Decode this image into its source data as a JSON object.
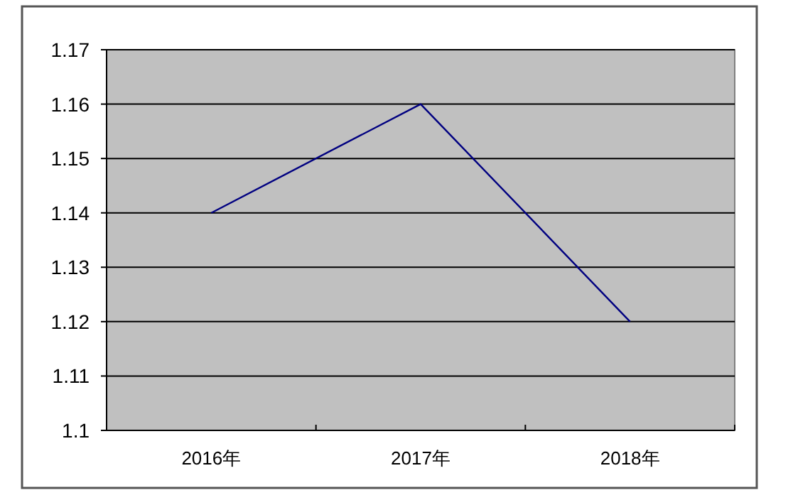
{
  "chart_data": {
    "type": "line",
    "categories": [
      "2016年",
      "2017年",
      "2018年"
    ],
    "series": [
      {
        "color": "#000080",
        "values": [
          1.14,
          1.16,
          1.12
        ]
      }
    ],
    "ylim": [
      1.1,
      1.17
    ],
    "yticks": [
      1.1,
      1.11,
      1.12,
      1.13,
      1.14,
      1.15,
      1.16,
      1.17
    ],
    "grid": "y",
    "marker": "none",
    "line_style": "solid"
  }
}
